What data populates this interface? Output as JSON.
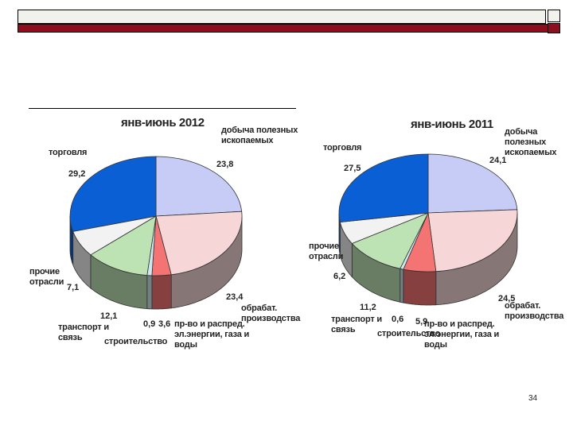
{
  "page_number": "34",
  "chart_data": [
    {
      "type": "pie",
      "title": "янв-июнь 2012",
      "slices": [
        {
          "key": "mining",
          "label": [
            "добыча полезных",
            "ископаемых"
          ],
          "value": 23.8,
          "display": "23,8",
          "color": "#c6ccf6"
        },
        {
          "key": "manufacturing",
          "label": [
            "обрабат.",
            "производства"
          ],
          "value": 23.4,
          "display": "23,4",
          "color": "#f6d6d6"
        },
        {
          "key": "energy",
          "label": [
            "пр-во и распред.",
            "эл.энергии, газа и",
            "воды"
          ],
          "value": 3.6,
          "display": "3,6",
          "color": "#f47474"
        },
        {
          "key": "construction",
          "label": [
            "строительство"
          ],
          "value": 0.9,
          "display": "0,9",
          "color": "#cfe7ef"
        },
        {
          "key": "transport",
          "label": [
            "транспорт и",
            "связь"
          ],
          "value": 12.1,
          "display": "12,1",
          "color": "#bde3b4"
        },
        {
          "key": "other",
          "label": [
            "прочие",
            "отрасли"
          ],
          "value": 7.1,
          "display": "7,1",
          "color": "#f2f2f2"
        },
        {
          "key": "trade",
          "label": [
            "торговля"
          ],
          "value": 29.2,
          "display": "29,2",
          "color": "#0a5fd4"
        }
      ]
    },
    {
      "type": "pie",
      "title": "янв-июнь 2011",
      "slices": [
        {
          "key": "mining",
          "label": [
            "добыча полезных",
            "ископаемых"
          ],
          "value": 24.1,
          "display": "24,1",
          "color": "#c6ccf6"
        },
        {
          "key": "manufacturing",
          "label": [
            "обрабат.",
            "производства"
          ],
          "value": 24.5,
          "display": "24,5",
          "color": "#f6d6d6"
        },
        {
          "key": "energy",
          "label": [
            "пр-во и распред.",
            "эл.энергии, газа и",
            "воды"
          ],
          "value": 5.9,
          "display": "5,9",
          "color": "#f47474"
        },
        {
          "key": "construction",
          "label": [
            "строительство"
          ],
          "value": 0.6,
          "display": "0,6",
          "color": "#cfe7ef"
        },
        {
          "key": "transport",
          "label": [
            "транспорт и",
            "связь"
          ],
          "value": 11.2,
          "display": "11,2",
          "color": "#bde3b4"
        },
        {
          "key": "other",
          "label": [
            "прочие",
            "отрасли"
          ],
          "value": 6.2,
          "display": "6,2",
          "color": "#f2f2f2"
        },
        {
          "key": "trade",
          "label": [
            "торговля"
          ],
          "value": 27.5,
          "display": "27,5",
          "color": "#0a5fd4"
        }
      ]
    }
  ]
}
